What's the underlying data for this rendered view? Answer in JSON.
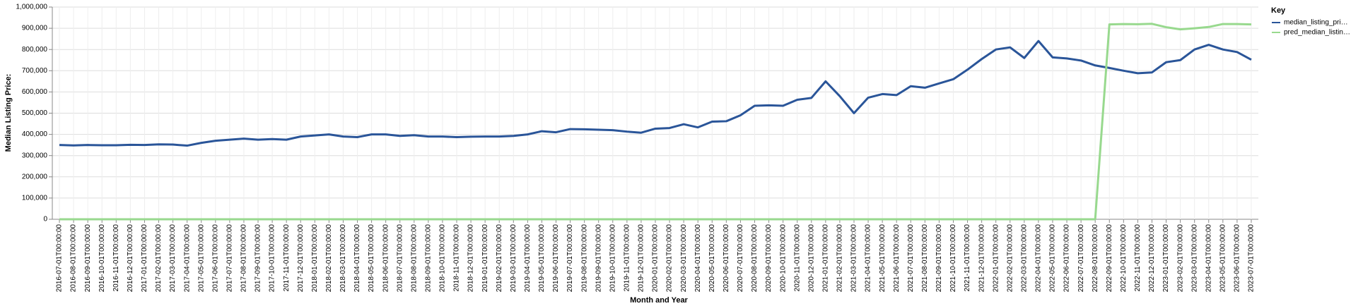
{
  "chart_data": {
    "type": "line",
    "x_label": "Month and Year",
    "y_label": "Median Listing Price:",
    "legend_title": "Key",
    "legend": "top-right",
    "grid": true,
    "categories": [
      "2016-07-01T00:00:00",
      "2016-08-01T00:00:00",
      "2016-09-01T00:00:00",
      "2016-10-01T00:00:00",
      "2016-11-01T00:00:00",
      "2016-12-01T00:00:00",
      "2017-01-01T00:00:00",
      "2017-02-01T00:00:00",
      "2017-03-01T00:00:00",
      "2017-04-01T00:00:00",
      "2017-05-01T00:00:00",
      "2017-06-01T00:00:00",
      "2017-07-01T00:00:00",
      "2017-08-01T00:00:00",
      "2017-09-01T00:00:00",
      "2017-10-01T00:00:00",
      "2017-11-01T00:00:00",
      "2017-12-01T00:00:00",
      "2018-01-01T00:00:00",
      "2018-02-01T00:00:00",
      "2018-03-01T00:00:00",
      "2018-04-01T00:00:00",
      "2018-05-01T00:00:00",
      "2018-06-01T00:00:00",
      "2018-07-01T00:00:00",
      "2018-08-01T00:00:00",
      "2018-09-01T00:00:00",
      "2018-10-01T00:00:00",
      "2018-11-01T00:00:00",
      "2018-12-01T00:00:00",
      "2019-01-01T00:00:00",
      "2019-02-01T00:00:00",
      "2019-03-01T00:00:00",
      "2019-04-01T00:00:00",
      "2019-05-01T00:00:00",
      "2019-06-01T00:00:00",
      "2019-07-01T00:00:00",
      "2019-08-01T00:00:00",
      "2019-09-01T00:00:00",
      "2019-10-01T00:00:00",
      "2019-11-01T00:00:00",
      "2019-12-01T00:00:00",
      "2020-01-01T00:00:00",
      "2020-02-01T00:00:00",
      "2020-03-01T00:00:00",
      "2020-04-01T00:00:00",
      "2020-05-01T00:00:00",
      "2020-06-01T00:00:00",
      "2020-07-01T00:00:00",
      "2020-08-01T00:00:00",
      "2020-09-01T00:00:00",
      "2020-10-01T00:00:00",
      "2020-11-01T00:00:00",
      "2020-12-01T00:00:00",
      "2021-01-01T00:00:00",
      "2021-02-01T00:00:00",
      "2021-03-01T00:00:00",
      "2021-04-01T00:00:00",
      "2021-05-01T00:00:00",
      "2021-06-01T00:00:00",
      "2021-07-01T00:00:00",
      "2021-08-01T00:00:00",
      "2021-09-01T00:00:00",
      "2021-10-01T00:00:00",
      "2021-11-01T00:00:00",
      "2021-12-01T00:00:00",
      "2022-01-01T00:00:00",
      "2022-02-01T00:00:00",
      "2022-03-01T00:00:00",
      "2022-04-01T00:00:00",
      "2022-05-01T00:00:00",
      "2022-06-01T00:00:00",
      "2022-07-01T00:00:00",
      "2022-08-01T00:00:00",
      "2022-09-01T00:00:00",
      "2022-10-01T00:00:00",
      "2022-11-01T00:00:00",
      "2022-12-01T00:00:00",
      "2023-01-01T00:00:00",
      "2023-02-01T00:00:00",
      "2023-03-01T00:00:00",
      "2023-04-01T00:00:00",
      "2023-05-01T00:00:00",
      "2023-06-01T00:00:00",
      "2023-07-01T00:00:00"
    ],
    "series": [
      {
        "name": "median_listing_pri…",
        "color": "#2a5599",
        "values": [
          350000,
          348000,
          350000,
          349000,
          349000,
          351000,
          350000,
          353000,
          352000,
          347000,
          360000,
          370000,
          375000,
          380000,
          375000,
          378000,
          375000,
          390000,
          395000,
          400000,
          390000,
          387000,
          400000,
          400000,
          393000,
          396000,
          390000,
          390000,
          387000,
          389000,
          390000,
          390000,
          393000,
          400000,
          415000,
          410000,
          425000,
          424000,
          422000,
          420000,
          413000,
          408000,
          427000,
          430000,
          448000,
          433000,
          460000,
          462000,
          490000,
          535000,
          537000,
          535000,
          563000,
          572000,
          650000,
          580000,
          500000,
          573000,
          590000,
          585000,
          627000,
          620000,
          640000,
          660000,
          705000,
          755000,
          800000,
          810000,
          760000,
          840000,
          763000,
          758000,
          748000,
          725000,
          713000,
          700000,
          688000,
          692000,
          740000,
          750000,
          800000,
          822000,
          800000,
          788000,
          752000
        ]
      },
      {
        "name": "pred_median_listin…",
        "color": "#98d98e",
        "values": [
          0,
          0,
          0,
          0,
          0,
          0,
          0,
          0,
          0,
          0,
          0,
          0,
          0,
          0,
          0,
          0,
          0,
          0,
          0,
          0,
          0,
          0,
          0,
          0,
          0,
          0,
          0,
          0,
          0,
          0,
          0,
          0,
          0,
          0,
          0,
          0,
          0,
          0,
          0,
          0,
          0,
          0,
          0,
          0,
          0,
          0,
          0,
          0,
          0,
          0,
          0,
          0,
          0,
          0,
          0,
          0,
          0,
          0,
          0,
          0,
          0,
          0,
          0,
          0,
          0,
          0,
          0,
          0,
          0,
          0,
          0,
          0,
          0,
          0,
          918000,
          920000,
          919000,
          921000,
          905000,
          895000,
          900000,
          906000,
          920000,
          920000,
          918000
        ]
      }
    ],
    "ylim": [
      0,
      1000000
    ],
    "yticks": [
      0,
      {
        "value": 100000,
        "label": "100,000"
      },
      {
        "value": 200000,
        "label": "200,000"
      },
      {
        "value": 300000,
        "label": "300,000"
      },
      {
        "value": 400000,
        "label": "400,000"
      },
      {
        "value": 500000,
        "label": "500,000"
      },
      {
        "value": 600000,
        "label": "600,000"
      },
      {
        "value": 700000,
        "label": "700,000"
      },
      {
        "value": 800000,
        "label": "800,000"
      },
      {
        "value": 900000,
        "label": "900,000"
      },
      {
        "value": 1000000,
        "label": "1,000,000"
      }
    ]
  }
}
